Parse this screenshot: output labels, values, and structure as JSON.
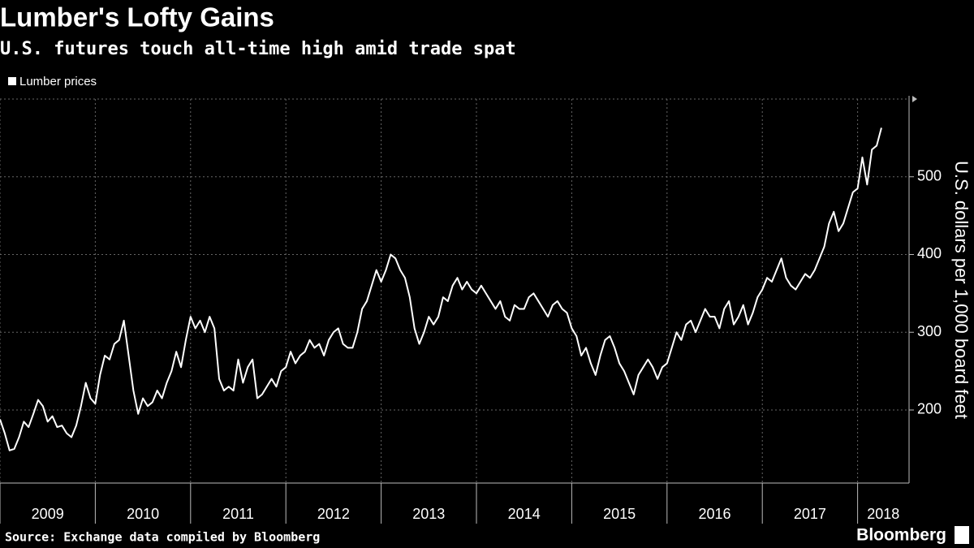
{
  "chart_data": {
    "type": "line",
    "title": "Lumber's Lofty Gains",
    "subtitle": "U.S. futures touch all-time high amid trade spat",
    "y_label": "U.S. dollars per 1,000 board feet",
    "source": "Source: Exchange data compiled by Bloomberg",
    "brand": "Bloomberg",
    "xlim": [
      2009,
      2018.54
    ],
    "xticks": [
      2009,
      2010,
      2011,
      2012,
      2013,
      2014,
      2015,
      2016,
      2017,
      2018
    ],
    "ylim": [
      106,
      600
    ],
    "yticks": [
      200,
      300,
      400,
      500
    ],
    "grid": true,
    "legend": "top-left",
    "x": [
      2009.0,
      2009.05,
      2009.1,
      2009.15,
      2009.2,
      2009.25,
      2009.3,
      2009.35,
      2009.4,
      2009.45,
      2009.5,
      2009.55,
      2009.6,
      2009.65,
      2009.7,
      2009.75,
      2009.8,
      2009.85,
      2009.9,
      2009.95,
      2010.0,
      2010.05,
      2010.1,
      2010.15,
      2010.2,
      2010.25,
      2010.3,
      2010.35,
      2010.4,
      2010.45,
      2010.5,
      2010.55,
      2010.6,
      2010.65,
      2010.7,
      2010.75,
      2010.8,
      2010.85,
      2010.9,
      2010.95,
      2011.0,
      2011.05,
      2011.1,
      2011.15,
      2011.2,
      2011.25,
      2011.3,
      2011.35,
      2011.4,
      2011.45,
      2011.5,
      2011.55,
      2011.6,
      2011.65,
      2011.7,
      2011.75,
      2011.8,
      2011.85,
      2011.9,
      2011.95,
      2012.0,
      2012.05,
      2012.1,
      2012.15,
      2012.2,
      2012.25,
      2012.3,
      2012.35,
      2012.4,
      2012.45,
      2012.5,
      2012.55,
      2012.6,
      2012.65,
      2012.7,
      2012.75,
      2012.8,
      2012.85,
      2012.9,
      2012.95,
      2013.0,
      2013.05,
      2013.1,
      2013.15,
      2013.2,
      2013.25,
      2013.3,
      2013.35,
      2013.4,
      2013.45,
      2013.5,
      2013.55,
      2013.6,
      2013.65,
      2013.7,
      2013.75,
      2013.8,
      2013.85,
      2013.9,
      2013.95,
      2014.0,
      2014.05,
      2014.1,
      2014.15,
      2014.2,
      2014.25,
      2014.3,
      2014.35,
      2014.4,
      2014.45,
      2014.5,
      2014.55,
      2014.6,
      2014.65,
      2014.7,
      2014.75,
      2014.8,
      2014.85,
      2014.9,
      2014.95,
      2015.0,
      2015.05,
      2015.1,
      2015.15,
      2015.2,
      2015.25,
      2015.3,
      2015.35,
      2015.4,
      2015.45,
      2015.5,
      2015.55,
      2015.6,
      2015.65,
      2015.7,
      2015.75,
      2015.8,
      2015.85,
      2015.9,
      2015.95,
      2016.0,
      2016.05,
      2016.1,
      2016.15,
      2016.2,
      2016.25,
      2016.3,
      2016.35,
      2016.4,
      2016.45,
      2016.5,
      2016.55,
      2016.6,
      2016.65,
      2016.7,
      2016.75,
      2016.8,
      2016.85,
      2016.9,
      2016.95,
      2017.0,
      2017.05,
      2017.1,
      2017.15,
      2017.2,
      2017.25,
      2017.3,
      2017.35,
      2017.4,
      2017.45,
      2017.5,
      2017.55,
      2017.6,
      2017.65,
      2017.7,
      2017.75,
      2017.8,
      2017.85,
      2017.9,
      2017.95,
      2018.0,
      2018.05,
      2018.1,
      2018.15,
      2018.2,
      2018.25
    ],
    "series": [
      {
        "name": "Lumber prices",
        "color": "#ffffff",
        "values": [
          188,
          170,
          148,
          150,
          165,
          185,
          178,
          195,
          213,
          205,
          185,
          192,
          178,
          180,
          170,
          165,
          180,
          205,
          235,
          215,
          208,
          245,
          270,
          265,
          285,
          290,
          315,
          270,
          225,
          195,
          215,
          205,
          210,
          225,
          215,
          235,
          250,
          275,
          255,
          290,
          320,
          305,
          315,
          300,
          320,
          305,
          240,
          225,
          230,
          225,
          265,
          235,
          255,
          265,
          215,
          220,
          230,
          240,
          230,
          250,
          255,
          275,
          260,
          270,
          275,
          290,
          280,
          285,
          270,
          290,
          300,
          305,
          285,
          280,
          280,
          300,
          330,
          340,
          360,
          380,
          365,
          380,
          400,
          395,
          380,
          370,
          345,
          305,
          285,
          300,
          320,
          310,
          320,
          345,
          340,
          360,
          370,
          355,
          365,
          355,
          350,
          360,
          350,
          340,
          330,
          340,
          320,
          315,
          335,
          330,
          330,
          345,
          350,
          340,
          330,
          320,
          335,
          340,
          330,
          325,
          305,
          295,
          270,
          280,
          260,
          245,
          270,
          290,
          295,
          280,
          260,
          250,
          235,
          220,
          245,
          255,
          265,
          255,
          240,
          255,
          260,
          280,
          300,
          290,
          310,
          315,
          300,
          315,
          330,
          320,
          320,
          305,
          330,
          340,
          310,
          320,
          335,
          310,
          325,
          345,
          355,
          370,
          365,
          380,
          395,
          370,
          360,
          355,
          365,
          375,
          370,
          380,
          395,
          410,
          440,
          455,
          430,
          440,
          460,
          480,
          485,
          525,
          490,
          535,
          540,
          563
        ]
      }
    ]
  }
}
